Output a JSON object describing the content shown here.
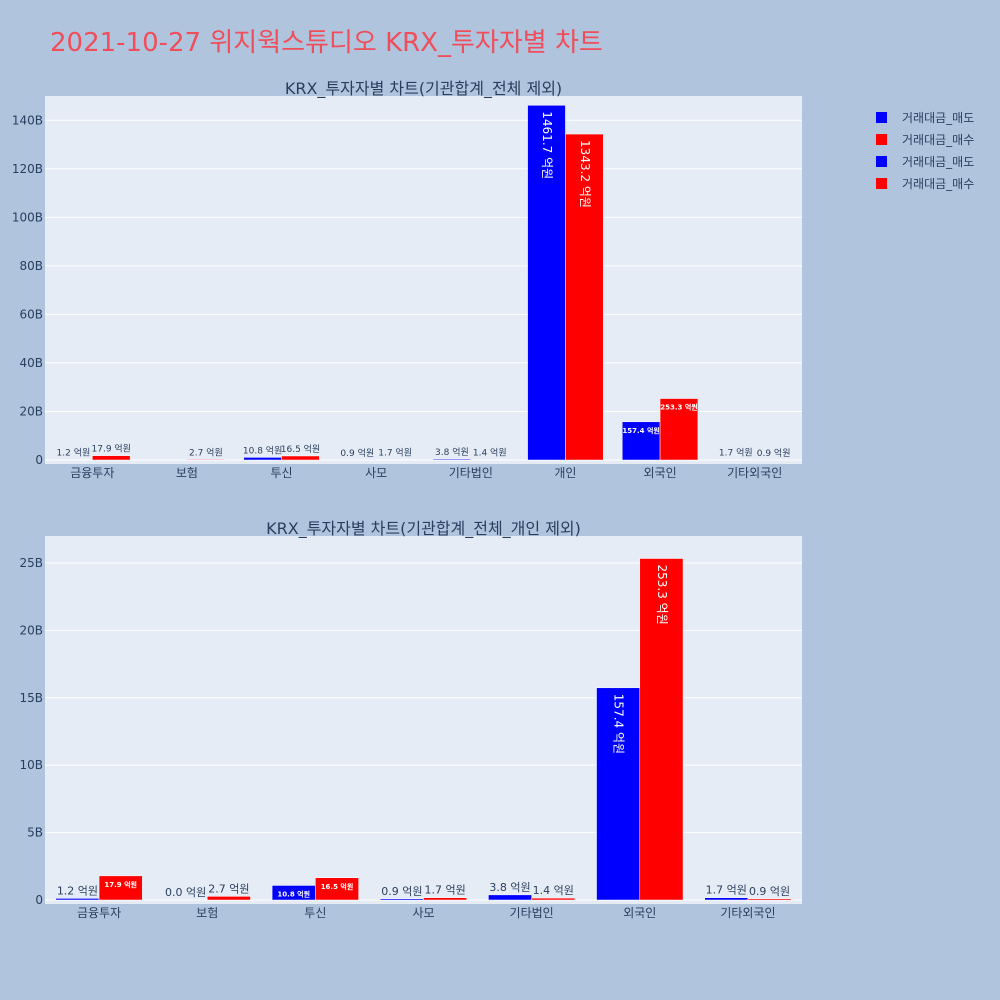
{
  "page": {
    "title": "2021-10-27 위지웍스튜디오 KRX_투자자별 차트"
  },
  "legend": [
    {
      "label": "거래대금_매도",
      "color": "#0000ff"
    },
    {
      "label": "거래대금_매수",
      "color": "#ff0000"
    },
    {
      "label": "거래대금_매도",
      "color": "#0000ff"
    },
    {
      "label": "거래대금_매수",
      "color": "#ff0000"
    }
  ],
  "chart_data": [
    {
      "type": "bar",
      "title": "KRX_투자자별 차트(기관합계_전체 제외)",
      "categories": [
        "금융투자",
        "보험",
        "투신",
        "사모",
        "기타법인",
        "개인",
        "외국인",
        "기타외국인"
      ],
      "ylim": [
        0,
        150
      ],
      "yticks": [
        0,
        20,
        40,
        60,
        80,
        100,
        120,
        140
      ],
      "ytick_labels": [
        "0",
        "20B",
        "40B",
        "60B",
        "80B",
        "100B",
        "120B",
        "140B"
      ],
      "grid": true,
      "series": [
        {
          "name": "거래대금_매도",
          "color": "#0000ff",
          "values": [
            0.12,
            0,
            1.08,
            0.09,
            0.38,
            146.17,
            15.74,
            0.17
          ],
          "labels": [
            "1.2 억원",
            "",
            "10.8 억원",
            "0.9 억원",
            "3.8 억원",
            "1461.7 억원",
            "157.4 억원",
            "1.7 억원"
          ]
        },
        {
          "name": "거래대금_매수",
          "color": "#ff0000",
          "values": [
            1.79,
            0.27,
            1.65,
            0.17,
            0.14,
            134.32,
            25.33,
            0.09
          ],
          "labels": [
            "17.9 억원",
            "2.7 억원",
            "16.5 억원",
            "1.7 억원",
            "1.4 억원",
            "1343.2 억원",
            "253.3 억원",
            "0.9 억원"
          ]
        }
      ]
    },
    {
      "type": "bar",
      "title": "KRX_투자자별 차트(기관합계_전체_개인 제외)",
      "categories": [
        "금융투자",
        "보험",
        "투신",
        "사모",
        "기타법인",
        "외국인",
        "기타외국인"
      ],
      "ylim": [
        0,
        27
      ],
      "yticks": [
        0,
        5,
        10,
        15,
        20,
        25
      ],
      "ytick_labels": [
        "0",
        "5B",
        "10B",
        "15B",
        "20B",
        "25B"
      ],
      "grid": true,
      "series": [
        {
          "name": "거래대금_매도",
          "color": "#0000ff",
          "values": [
            0.12,
            0.0,
            1.08,
            0.09,
            0.38,
            15.74,
            0.17
          ],
          "labels": [
            "1.2 억원",
            "0.0 억원",
            "10.8 억원",
            "0.9 억원",
            "3.8 억원",
            "157.4 억원",
            "1.7 억원"
          ]
        },
        {
          "name": "거래대금_매수",
          "color": "#ff0000",
          "values": [
            1.79,
            0.27,
            1.65,
            0.17,
            0.14,
            25.33,
            0.09
          ],
          "labels": [
            "17.9 억원",
            "2.7 억원",
            "16.5 억원",
            "1.7 억원",
            "1.4 억원",
            "253.3 억원",
            "0.9 억원"
          ]
        }
      ]
    }
  ]
}
